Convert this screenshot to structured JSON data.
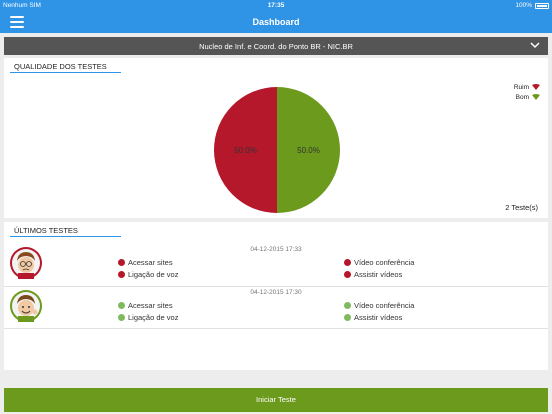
{
  "status_bar": {
    "carrier": "Nenhum SIM",
    "time": "17:35",
    "battery": "100%"
  },
  "nav": {
    "title": "Dashboard",
    "menu_icon": "hamburger-menu-icon"
  },
  "selector": {
    "label": "Nucleo de Inf. e Coord. do Ponto BR - NIC.BR",
    "icon": "chevron-down-icon"
  },
  "quality": {
    "title": "QUALIDADE DOS TESTES",
    "legend": [
      {
        "label": "Ruim",
        "color": "#b5172b"
      },
      {
        "label": "Bom",
        "color": "#6c9a1d"
      }
    ],
    "count_label": "2 Teste(s)"
  },
  "chart_data": {
    "type": "pie",
    "categories": [
      "Ruim",
      "Bom"
    ],
    "values": [
      50.0,
      50.0
    ],
    "labels": [
      "50.0%",
      "50.0%"
    ],
    "colors": [
      "#b5172b",
      "#6c9a1d"
    ],
    "legend": "top-right"
  },
  "latest": {
    "title": "ÚLTIMOS TESTES",
    "tests": [
      {
        "date": "04-12-2015 17:33",
        "status": "ruim",
        "color": "#b5172b",
        "items": [
          "Acessar sites",
          "Ligação de voz",
          "Vídeo conferência",
          "Assistir vídeos"
        ]
      },
      {
        "date": "04-12-2015 17:30",
        "status": "bom",
        "color": "#7dbb5e",
        "items": [
          "Acessar sites",
          "Ligação de voz",
          "Vídeo conferência",
          "Assistir vídeos"
        ]
      }
    ]
  },
  "footer": {
    "button_label": "Iniciar Teste"
  }
}
